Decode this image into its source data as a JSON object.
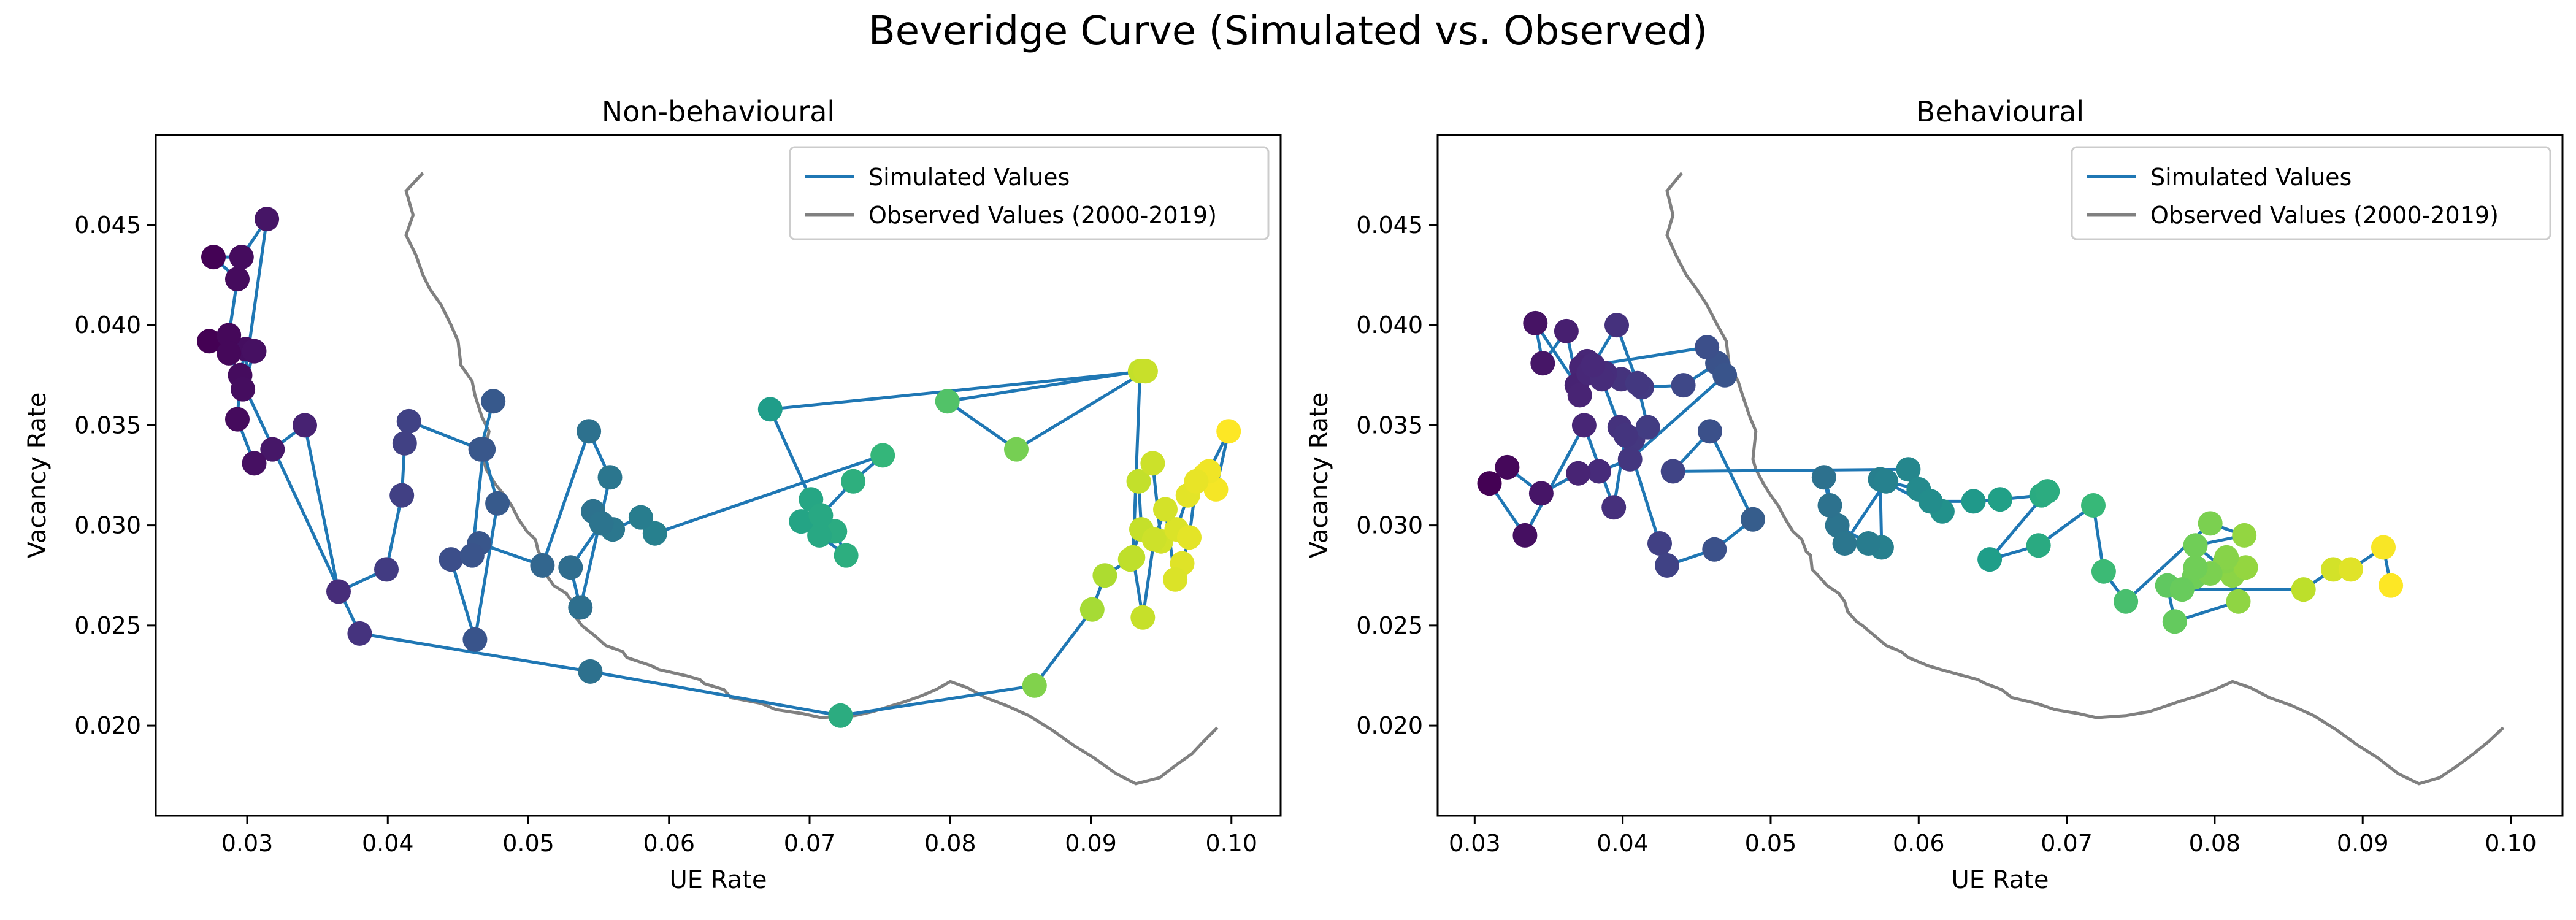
{
  "figure": {
    "title": "Beveridge Curve (Simulated vs. Observed)"
  },
  "chart_data": [
    {
      "type": "line",
      "title": "Non-behavioural",
      "xlabel": "UE Rate",
      "ylabel": "Vacancy Rate",
      "xlim": [
        0.0235,
        0.1035
      ],
      "ylim": [
        0.0155,
        0.0495
      ],
      "xticks": [
        0.03,
        0.04,
        0.05,
        0.06,
        0.07,
        0.08,
        0.09,
        0.1
      ],
      "xtick_labels": [
        "0.03",
        "0.04",
        "0.05",
        "0.06",
        "0.07",
        "0.08",
        "0.09",
        "0.10"
      ],
      "yticks": [
        0.02,
        0.025,
        0.03,
        0.035,
        0.04,
        0.045
      ],
      "ytick_labels": [
        "0.020",
        "0.025",
        "0.030",
        "0.035",
        "0.040",
        "0.045"
      ],
      "grid": false,
      "legend": {
        "position": "top-right",
        "entries": [
          "Simulated Values",
          "Observed Values (2000-2019)"
        ]
      },
      "series": [
        {
          "name": "Simulated Values",
          "color": "#1f77b4",
          "marker_colormap": "viridis",
          "x": [
            0.0475,
            0.0466,
            0.0415,
            0.0412,
            0.041,
            0.0399,
            0.0365,
            0.0341,
            0.0318,
            0.0305,
            0.0293,
            0.0295,
            0.0299,
            0.0273,
            0.0287,
            0.0293,
            0.0276,
            0.0296,
            0.0314,
            0.0297,
            0.0305,
            0.0287,
            0.038,
            0.0544,
            0.0722,
            0.086,
            0.0901,
            0.091,
            0.0928,
            0.0936,
            0.0934,
            0.0944,
            0.095,
            0.0961,
            0.0969,
            0.0981,
            0.0989,
            0.0998,
            0.0984,
            0.0975,
            0.097,
            0.0965,
            0.096,
            0.0953,
            0.0945,
            0.0937,
            0.093,
            0.0935,
            0.0798,
            0.0847,
            0.0939,
            0.0672,
            0.0701,
            0.0718,
            0.0726,
            0.0707,
            0.0694,
            0.0708,
            0.0731,
            0.0752,
            0.059,
            0.058,
            0.056,
            0.0546,
            0.0552,
            0.053,
            0.0537,
            0.0558,
            0.0543,
            0.051,
            0.0465,
            0.0445,
            0.0462,
            0.0478,
            0.0468,
            0.046
          ],
          "y": [
            0.0362,
            0.0338,
            0.0352,
            0.0341,
            0.0315,
            0.0278,
            0.0267,
            0.035,
            0.0338,
            0.0331,
            0.0353,
            0.0375,
            0.0388,
            0.0392,
            0.0395,
            0.0423,
            0.0434,
            0.0434,
            0.0453,
            0.0368,
            0.0387,
            0.0386,
            0.0246,
            0.0227,
            0.0205,
            0.022,
            0.0258,
            0.0275,
            0.0283,
            0.0298,
            0.0322,
            0.0331,
            0.0292,
            0.0298,
            0.0315,
            0.0325,
            0.0318,
            0.0347,
            0.0327,
            0.0322,
            0.0294,
            0.0281,
            0.0273,
            0.0308,
            0.0293,
            0.0254,
            0.0284,
            0.0377,
            0.0362,
            0.0338,
            0.0377,
            0.0358,
            0.0313,
            0.0297,
            0.0285,
            0.0295,
            0.0302,
            0.0305,
            0.0322,
            0.0335,
            0.0296,
            0.0304,
            0.0298,
            0.0307,
            0.0301,
            0.0279,
            0.0259,
            0.0324,
            0.0347,
            0.028,
            0.0291,
            0.0283,
            0.0243,
            0.0311,
            0.0338,
            0.0285
          ]
        },
        {
          "name": "Observed Values (2000-2019)",
          "color": "#808080",
          "x": [
            0.0425,
            0.0413,
            0.0418,
            0.0413,
            0.042,
            0.0425,
            0.043,
            0.0438,
            0.0445,
            0.045,
            0.0452,
            0.046,
            0.0462,
            0.0467,
            0.0472,
            0.047,
            0.0468,
            0.047,
            0.0476,
            0.0483,
            0.0488,
            0.0493,
            0.0499,
            0.0505,
            0.0507,
            0.0509,
            0.0509,
            0.0513,
            0.0518,
            0.0527,
            0.0531,
            0.053,
            0.0536,
            0.0538,
            0.0547,
            0.0555,
            0.0567,
            0.057,
            0.0587,
            0.0593,
            0.0612,
            0.0622,
            0.0625,
            0.0639,
            0.0644,
            0.0666,
            0.0676,
            0.0695,
            0.0708,
            0.0732,
            0.0745,
            0.0768,
            0.078,
            0.079,
            0.08,
            0.0812,
            0.0825,
            0.084,
            0.0856,
            0.0872,
            0.0888,
            0.0902,
            0.0918,
            0.0932,
            0.0949,
            0.096,
            0.0972,
            0.098,
            0.099
          ],
          "y": [
            0.0476,
            0.0467,
            0.0455,
            0.0445,
            0.0435,
            0.0425,
            0.0418,
            0.041,
            0.04,
            0.0392,
            0.038,
            0.0372,
            0.0365,
            0.0354,
            0.0347,
            0.034,
            0.0333,
            0.0328,
            0.0321,
            0.0315,
            0.031,
            0.0303,
            0.0297,
            0.0293,
            0.0287,
            0.0285,
            0.0278,
            0.0275,
            0.027,
            0.0266,
            0.0262,
            0.0257,
            0.0252,
            0.025,
            0.0245,
            0.024,
            0.0237,
            0.0234,
            0.023,
            0.0228,
            0.0225,
            0.0223,
            0.0221,
            0.0218,
            0.0214,
            0.0211,
            0.0208,
            0.0206,
            0.0204,
            0.0205,
            0.0207,
            0.0212,
            0.0215,
            0.0218,
            0.0222,
            0.0219,
            0.0214,
            0.021,
            0.0205,
            0.0198,
            0.019,
            0.0184,
            0.0176,
            0.0171,
            0.0174,
            0.018,
            0.0186,
            0.0192,
            0.0199
          ]
        }
      ]
    },
    {
      "type": "line",
      "title": "Behavioural",
      "xlabel": "UE Rate",
      "ylabel": "Vacancy Rate",
      "xlim": [
        0.0275,
        0.1035
      ],
      "ylim": [
        0.0155,
        0.0495
      ],
      "xticks": [
        0.03,
        0.04,
        0.05,
        0.06,
        0.07,
        0.08,
        0.09,
        0.1
      ],
      "xtick_labels": [
        "0.03",
        "0.04",
        "0.05",
        "0.06",
        "0.07",
        "0.08",
        "0.09",
        "0.10"
      ],
      "yticks": [
        0.02,
        0.025,
        0.03,
        0.035,
        0.04,
        0.045
      ],
      "ytick_labels": [
        "0.020",
        "0.025",
        "0.030",
        "0.035",
        "0.040",
        "0.045"
      ],
      "grid": false,
      "legend": {
        "position": "top-right",
        "entries": [
          "Simulated Values",
          "Observed Values (2000-2019)"
        ]
      },
      "series": [
        {
          "name": "Simulated Values",
          "color": "#1f77b4",
          "marker_colormap": "viridis",
          "x": [
            0.0464,
            0.0441,
            0.0413,
            0.0399,
            0.0388,
            0.0376,
            0.0372,
            0.0369,
            0.0341,
            0.0346,
            0.0362,
            0.0371,
            0.0377,
            0.0386,
            0.0398,
            0.0407,
            0.0417,
            0.041,
            0.0396,
            0.038,
            0.0457,
            0.0469,
            0.0405,
            0.0384,
            0.037,
            0.0345,
            0.0322,
            0.031,
            0.0334,
            0.0374,
            0.0394,
            0.0402,
            0.0425,
            0.043,
            0.0462,
            0.0488,
            0.0459,
            0.0434,
            0.0593,
            0.0616,
            0.0574,
            0.0575,
            0.0566,
            0.0545,
            0.054,
            0.0536,
            0.055,
            0.0578,
            0.06,
            0.0608,
            0.0637,
            0.0655,
            0.0683,
            0.0687,
            0.0648,
            0.0681,
            0.0718,
            0.0725,
            0.074,
            0.0797,
            0.082,
            0.0787,
            0.0812,
            0.0816,
            0.0773,
            0.0768,
            0.0786,
            0.0807,
            0.0821,
            0.0808,
            0.0797,
            0.0787,
            0.0778,
            0.086,
            0.088,
            0.0892,
            0.0914,
            0.0919
          ],
          "y": [
            0.0381,
            0.037,
            0.0369,
            0.0373,
            0.0376,
            0.0382,
            0.0379,
            0.037,
            0.0401,
            0.0381,
            0.0397,
            0.0365,
            0.0376,
            0.0373,
            0.0349,
            0.0343,
            0.0349,
            0.0371,
            0.04,
            0.038,
            0.0389,
            0.0375,
            0.0333,
            0.0327,
            0.0326,
            0.0316,
            0.0329,
            0.0321,
            0.0295,
            0.035,
            0.0309,
            0.0345,
            0.0291,
            0.028,
            0.0288,
            0.0303,
            0.0347,
            0.0327,
            0.0328,
            0.0307,
            0.0323,
            0.0289,
            0.0291,
            0.03,
            0.031,
            0.0324,
            0.0291,
            0.0322,
            0.0318,
            0.0312,
            0.0312,
            0.0313,
            0.0315,
            0.0317,
            0.0283,
            0.029,
            0.031,
            0.0277,
            0.0262,
            0.0301,
            0.0295,
            0.029,
            0.0275,
            0.0262,
            0.0252,
            0.027,
            0.0274,
            0.0282,
            0.0279,
            0.0284,
            0.0276,
            0.0279,
            0.0268,
            0.0268,
            0.0278,
            0.0278,
            0.0289,
            0.027
          ]
        },
        {
          "name": "Observed Values (2000-2019)",
          "color": "#808080",
          "x": [
            0.044,
            0.043,
            0.0434,
            0.043,
            0.0436,
            0.0443,
            0.045,
            0.0457,
            0.0464,
            0.047,
            0.0472,
            0.0478,
            0.0481,
            0.0486,
            0.049,
            0.0489,
            0.0488,
            0.049,
            0.0495,
            0.05,
            0.0505,
            0.051,
            0.0515,
            0.0521,
            0.0524,
            0.0527,
            0.0528,
            0.0532,
            0.0538,
            0.0546,
            0.055,
            0.0552,
            0.0558,
            0.0562,
            0.057,
            0.0578,
            0.0588,
            0.0593,
            0.0606,
            0.0615,
            0.063,
            0.064,
            0.0645,
            0.0656,
            0.0663,
            0.068,
            0.0692,
            0.0708,
            0.072,
            0.074,
            0.0756,
            0.0776,
            0.0789,
            0.08,
            0.0812,
            0.0824,
            0.0837,
            0.0852,
            0.0867,
            0.0882,
            0.0897,
            0.091,
            0.0924,
            0.0938,
            0.0952,
            0.0964,
            0.0975,
            0.0985,
            0.0995
          ],
          "y": [
            0.0476,
            0.0467,
            0.0455,
            0.0445,
            0.0435,
            0.0425,
            0.0418,
            0.041,
            0.04,
            0.0392,
            0.038,
            0.0372,
            0.0365,
            0.0354,
            0.0347,
            0.034,
            0.0333,
            0.0328,
            0.0321,
            0.0315,
            0.031,
            0.0303,
            0.0297,
            0.0293,
            0.0287,
            0.0285,
            0.0278,
            0.0275,
            0.027,
            0.0266,
            0.0262,
            0.0257,
            0.0252,
            0.025,
            0.0245,
            0.024,
            0.0237,
            0.0234,
            0.023,
            0.0228,
            0.0225,
            0.0223,
            0.0221,
            0.0218,
            0.0214,
            0.0211,
            0.0208,
            0.0206,
            0.0204,
            0.0205,
            0.0207,
            0.0212,
            0.0215,
            0.0218,
            0.0222,
            0.0219,
            0.0214,
            0.021,
            0.0205,
            0.0198,
            0.019,
            0.0184,
            0.0176,
            0.0171,
            0.0174,
            0.018,
            0.0186,
            0.0192,
            0.0199
          ]
        }
      ]
    }
  ]
}
